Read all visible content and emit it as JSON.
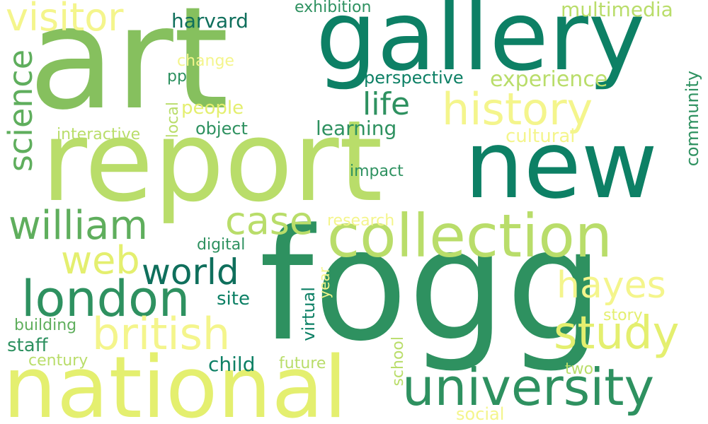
{
  "words": {
    "art": "art",
    "report": "report",
    "gallery": "gallery",
    "new": "new",
    "fogg": "fogg",
    "national": "national",
    "collection": "collection",
    "university": "university",
    "london": "london",
    "history": "history",
    "study": "study",
    "british": "british",
    "william": "william",
    "world": "world",
    "visitor": "visitor",
    "science": "science",
    "hayes": "hayes",
    "case": "case",
    "web": "web",
    "life": "life",
    "harvard": "harvard",
    "multimedia": "multimedia",
    "experience": "experience",
    "exhibition": "exhibition",
    "perspective": "perspective",
    "change": "change",
    "pp": "pp",
    "people": "people",
    "object": "object",
    "interactive": "interactive",
    "local": "local",
    "learning": "learning",
    "cultural": "cultural",
    "community": "community",
    "impact": "impact",
    "research": "research",
    "digital": "digital",
    "site": "site",
    "year": "year",
    "virtual": "virtual",
    "building": "building",
    "staff": "staff",
    "century": "century",
    "child": "child",
    "future": "future",
    "school": "school",
    "story": "story",
    "two": "two",
    "social": "social"
  }
}
